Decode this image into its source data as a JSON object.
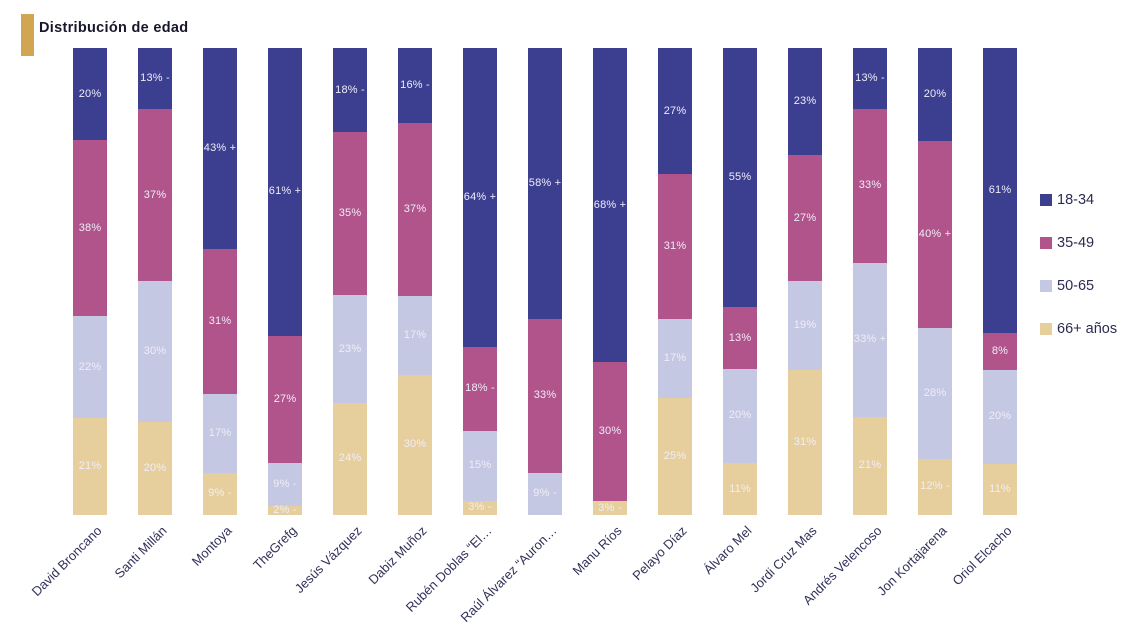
{
  "title": "Distribución de edad",
  "title_marker_color": "#d0a653",
  "chart_data": {
    "type": "bar",
    "variant": "stacked-100-vertical",
    "title": "Distribución de edad",
    "grid": false,
    "legend_position": "right",
    "bar_label_color": "#efedf8",
    "categories": [
      "David Broncano",
      "Santi Millán",
      "Montoya",
      "TheGrefg",
      "Jesús Vázquez",
      "Dabiz Muñoz",
      "Rubén Doblas “El…",
      "Raúl Álvarez “Auron…",
      "Manu Ríos",
      "Pelayo Díaz",
      "Álvaro Mel",
      "Jordi Cruz Mas",
      "Andrés Velencoso",
      "Jon Kortajarena",
      "Oriol Elcacho"
    ],
    "series": [
      {
        "name": "18-34",
        "color": "#3c3e8f",
        "values": [
          20,
          13,
          43,
          61,
          18,
          16,
          64,
          58,
          68,
          27,
          55,
          23,
          13,
          20,
          61
        ],
        "labels": [
          "20%",
          "13% -",
          "43% +",
          "61% +",
          "18% -",
          "16% -",
          "64% +",
          "58% +",
          "68% +",
          "27%",
          "55%",
          "23%",
          "13% -",
          "20%",
          "61%"
        ]
      },
      {
        "name": "35-49",
        "color": "#b0548b",
        "values": [
          38,
          37,
          31,
          27,
          35,
          37,
          18,
          33,
          30,
          31,
          13,
          27,
          33,
          40,
          8
        ],
        "labels": [
          "38%",
          "37%",
          "31%",
          "27%",
          "35%",
          "37%",
          "18% -",
          "33%",
          "30%",
          "31%",
          "13%",
          "27%",
          "33%",
          "40% +",
          "8%"
        ]
      },
      {
        "name": "50-65",
        "color": "#c5c8e2",
        "values": [
          22,
          30,
          17,
          9,
          23,
          17,
          15,
          9,
          0,
          17,
          20,
          19,
          33,
          28,
          20
        ],
        "labels": [
          "22%",
          "30%",
          "17%",
          "9% -",
          "23%",
          "17%",
          "15%",
          "9% -",
          "",
          "17%",
          "20%",
          "19%",
          "33% +",
          "28%",
          "20%"
        ]
      },
      {
        "name": "66+ años",
        "color": "#e7cf9d",
        "values": [
          21,
          20,
          9,
          2,
          24,
          30,
          3,
          0,
          3,
          25,
          11,
          31,
          21,
          12,
          11
        ],
        "labels": [
          "21%",
          "20%",
          "9% -",
          "2% -",
          "24%",
          "30%",
          "3% -",
          "",
          "3% -",
          "25%",
          "11%",
          "31%",
          "21%",
          "12% -",
          "11%"
        ]
      }
    ],
    "legend": [
      "18-34",
      "35-49",
      "50-65",
      "66+ años"
    ]
  }
}
